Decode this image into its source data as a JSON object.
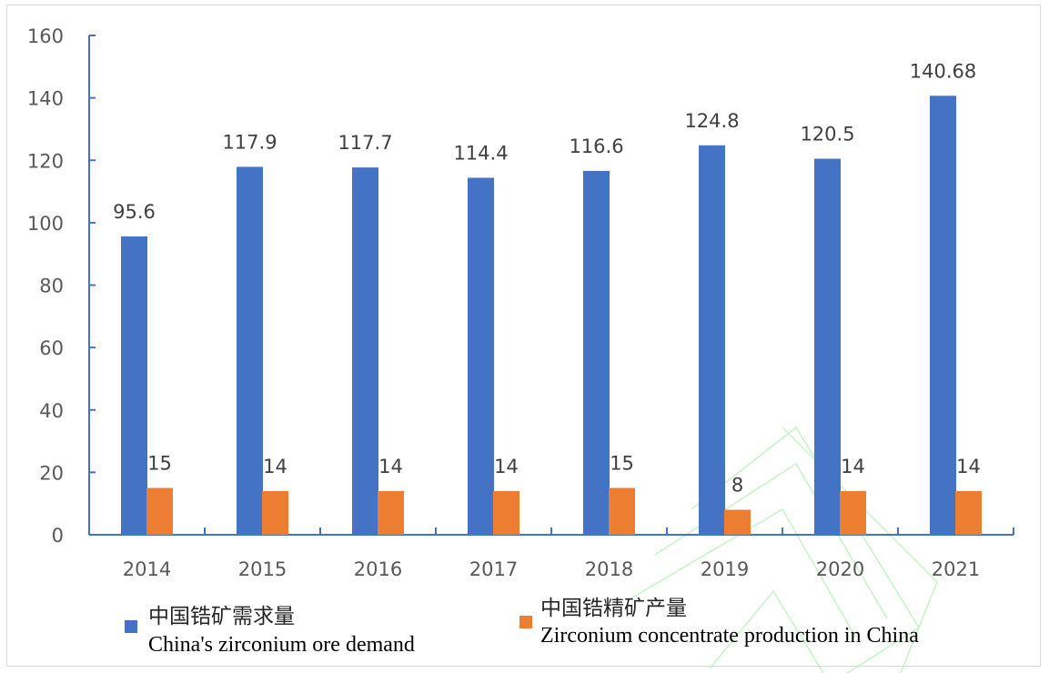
{
  "chart_data": {
    "type": "bar",
    "title": "",
    "xlabel": "",
    "ylabel": "",
    "categories": [
      "2014",
      "2015",
      "2016",
      "2017",
      "2018",
      "2019",
      "2020",
      "2021"
    ],
    "series": [
      {
        "name_cn": "中国锆矿需求量",
        "name_en": "China's zirconium ore demand",
        "color": "#4472c4",
        "values": [
          95.6,
          117.9,
          117.7,
          114.4,
          116.6,
          124.8,
          120.5,
          140.68
        ],
        "labels": [
          "95.6",
          "117.9",
          "117.7",
          "114.4",
          "116.6",
          "124.8",
          "120.5",
          "140.68"
        ]
      },
      {
        "name_cn": "中国锆精矿产量",
        "name_en": "Zirconium concentrate production in China",
        "color": "#ed7d31",
        "values": [
          15,
          14,
          14,
          14,
          15,
          8,
          14,
          14
        ],
        "labels": [
          "15",
          "14",
          "14",
          "14",
          "15",
          "8",
          "14",
          "14"
        ]
      }
    ],
    "ylim": [
      0,
      160
    ],
    "yticks": [
      0,
      20,
      40,
      60,
      80,
      100,
      120,
      140,
      160
    ],
    "ytick_labels": [
      "0",
      "20",
      "40",
      "60",
      "80",
      "100",
      "120",
      "140",
      "160"
    ],
    "grid": false,
    "legend_position": "bottom",
    "axis_color": "#4472c4"
  }
}
